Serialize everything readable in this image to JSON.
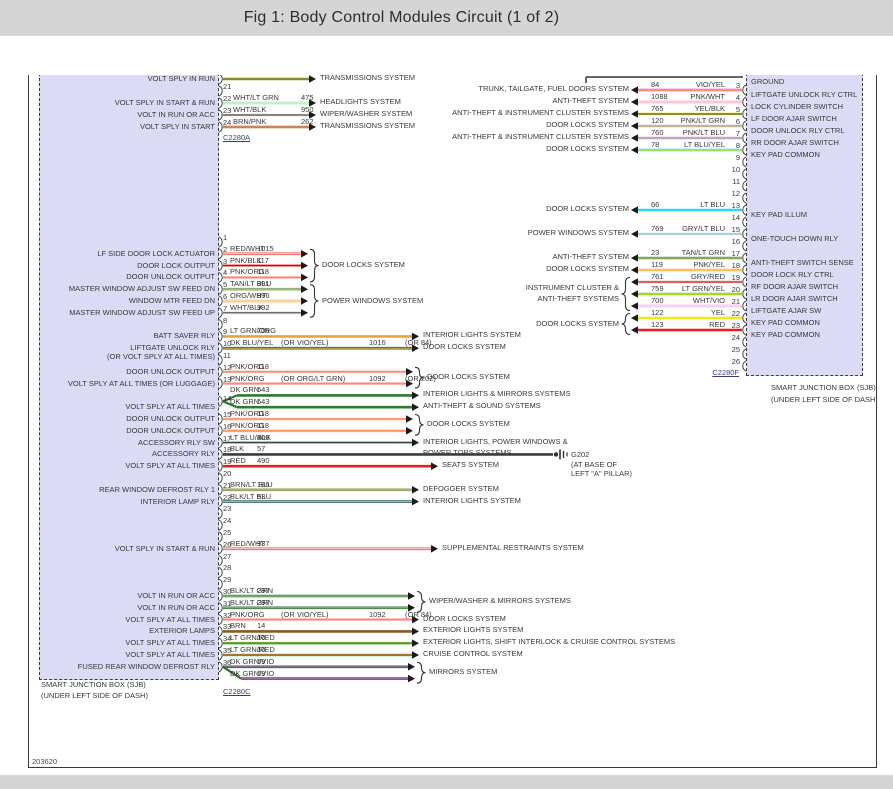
{
  "title": "Fig 1: Body Control Modules Circuit (1 of 2)",
  "sheet_number": "203620",
  "left_box": {
    "caption_line1": "SMART JUNCTION BOX (SJB)",
    "caption_line2": "(UNDER LEFT SIDE OF DASH)"
  },
  "right_box": {
    "caption_line1": "SMART JUNCTION BOX (SJB)",
    "caption_line2": "(UNDER LEFT SIDE OF DASH)"
  },
  "ground_g202": {
    "name": "G202",
    "lines": [
      "(AT BASE OF",
      "LEFT \"A\" PILLAR)"
    ]
  },
  "left_groups": {
    "dl1": "DOOR LOCKS SYSTEM",
    "pw": "POWER WINDOWS SYSTEM",
    "dl2": "DOOR LOCKS SYSTEM",
    "dl3": "DOOR LOCKS SYSTEM",
    "ww": "WIPER/WASHER & MIRRORS SYSTEMS",
    "mir": "MIRRORS SYSTEM"
  },
  "left_sections": [
    {
      "connector": "C2280A",
      "rows": [
        {
          "pin": "",
          "wire_key": "OLIVE",
          "label": "VOLT SPLY IN RUN",
          "system": "TRANSMISSIONS SYSTEM"
        },
        {
          "pin": "21"
        },
        {
          "pin": "22",
          "color": "WHT/LT GRN",
          "circuit": "475",
          "label": "VOLT SPLY IN START & RUN",
          "system": "HEADLIGHTS SYSTEM"
        },
        {
          "pin": "23",
          "color": "WHT/BLK",
          "circuit": "950",
          "label": "VOLT IN RUN OR ACC",
          "system": "WIPER/WASHER SYSTEM"
        },
        {
          "pin": "24",
          "color": "BRN/PNK",
          "circuit": "262",
          "label": "VOLT SPLY IN START",
          "system": "TRANSMISSIONS SYSTEM"
        }
      ]
    },
    {
      "connector": "C2280C",
      "rows": [
        {
          "pin": "1"
        },
        {
          "pin": "2",
          "color": "RED/WHT",
          "circuit": "1015",
          "label": "LF SIDE DOOR LOCK ACTUATOR",
          "group": "dl1"
        },
        {
          "pin": "3",
          "color": "PNK/BLK",
          "circuit": "117",
          "label": "DOOR LOCK OUTPUT",
          "group": "dl1"
        },
        {
          "pin": "4",
          "color": "PNK/ORG",
          "circuit": "118",
          "label": "DOOR UNLOCK OUTPUT",
          "group": "dl1"
        },
        {
          "pin": "5",
          "color": "TAN/LT BLU",
          "circuit": "991",
          "label": "MASTER WINDOW ADJUST SW FEED DN",
          "group": "pw"
        },
        {
          "pin": "6",
          "color": "ORG/WHT",
          "circuit": "996",
          "label": "WINDOW MTR FEED DN",
          "group": "pw"
        },
        {
          "pin": "7",
          "color": "WHT/BLK",
          "circuit": "992",
          "label": "MASTER WINDOW ADJUST SW FEED UP",
          "group": "pw"
        },
        {
          "pin": "8"
        },
        {
          "pin": "9",
          "color": "LT GRN/ORG",
          "circuit": "705",
          "label": "BATT SAVER RLY",
          "system": "INTERIOR LIGHTS SYSTEM",
          "reach": "far"
        },
        {
          "pin": "10",
          "color": "DK BLU/YEL",
          "alt_color": "(OR VIO/YEL)",
          "circuit": "1016",
          "alt_circuit": "(OR 84)",
          "label": "LIFTGATE UNLOCK RLY",
          "label2": "(OR VOLT SPLY AT ALL TIMES)",
          "system": "DOOR LOCKS SYSTEM",
          "reach": "far"
        },
        {
          "pin": "11"
        },
        {
          "pin": "12",
          "color": "PNK/ORG",
          "circuit": "118",
          "label": "DOOR UNLOCK OUTPUT",
          "group": "dl2"
        },
        {
          "pin": "13",
          "color": "PNK/ORG",
          "alt_color": "(OR ORG/LT GRN)",
          "circuit": "1092",
          "alt_circuit": "(OR 202)",
          "label": "VOLT SPLY AT ALL TIMES (OR LUGGAGE)",
          "group": "dl2"
        },
        {
          "pin": "14",
          "color": "DK GRN",
          "circuit": "543",
          "system": "INTERIOR LIGHTS & MIRRORS SYSTEMS",
          "fork": "mid-a",
          "reach": "far"
        },
        {
          "color": "DK GRN",
          "circuit": "543",
          "system": "ANTI-THEFT & SOUND SYSTEMS",
          "label": "VOLT SPLY AT ALL TIMES",
          "fork": "mid-b",
          "reach": "far"
        },
        {
          "pin": "15",
          "color": "PNK/ORG",
          "circuit": "118",
          "label": "DOOR UNLOCK OUTPUT",
          "group": "dl3"
        },
        {
          "pin": "16",
          "color": "PNK/ORG",
          "circuit": "118",
          "label": "DOOR UNLOCK OUTPUT",
          "group": "dl3"
        },
        {
          "pin": "17",
          "color": "LT BLU/BLK",
          "circuit": "400",
          "label": "ACCESSORY RLY SW",
          "system": [
            "INTERIOR LIGHTS, POWER WINDOWS &",
            "POWER TOPS SYSTEMS"
          ],
          "reach": "far"
        },
        {
          "pin": "18",
          "color": "BLK",
          "circuit": "57",
          "label": "ACCESSORY RLY",
          "ground": true,
          "reach": "gnd"
        },
        {
          "pin": "19",
          "color": "RED",
          "circuit": "490",
          "label": "VOLT SPLY AT ALL TIMES",
          "system": "SEATS SYSTEM",
          "reach": "farp"
        },
        {
          "pin": "20"
        },
        {
          "pin": "21",
          "color": "BRN/LT BLU",
          "circuit": "186",
          "label": "REAR WINDOW DEFROST RLY 1",
          "system": "DEFOGGER SYSTEM",
          "reach": "far"
        },
        {
          "pin": "22",
          "color": "BLK/LT BLU",
          "circuit": "53",
          "label": "INTERIOR LAMP RLY",
          "system": "INTERIOR LIGHTS SYSTEM",
          "reach": "far"
        },
        {
          "pin": "23"
        },
        {
          "pin": "24"
        },
        {
          "pin": "25"
        },
        {
          "pin": "26",
          "color": "RED/WHT",
          "circuit": "937",
          "label": "VOLT SPLY IN START & RUN",
          "system": "SUPPLEMENTAL RESTRAINTS SYSTEM",
          "reach": "farp"
        },
        {
          "pin": "27"
        },
        {
          "pin": "28"
        },
        {
          "pin": "29"
        },
        {
          "pin": "30",
          "color": "BLK/LT GRN",
          "circuit": "297",
          "label": "VOLT IN RUN OR ACC",
          "group": "ww"
        },
        {
          "pin": "31",
          "color": "BLK/LT GRN",
          "circuit": "297",
          "label": "VOLT IN RUN OR ACC",
          "group": "ww"
        },
        {
          "pin": "32",
          "color": "PNK/ORG",
          "alt_color": "(OR VIO/YEL)",
          "circuit": "1092",
          "alt_circuit": "(OR 84)",
          "label": "VOLT SPLY AT ALL TIMES",
          "system": "DOOR LOCKS SYSTEM",
          "reach": "far"
        },
        {
          "pin": "33",
          "color": "BRN",
          "circuit": "14",
          "label": "EXTERIOR LAMPS",
          "system": "EXTERIOR LIGHTS SYSTEM",
          "reach": "far"
        },
        {
          "pin": "34",
          "color": "LT GRN/RED",
          "circuit": "10",
          "label": "VOLT SPLY AT ALL TIMES",
          "system": "EXTERIOR LIGHTS, SHIFT INTERLOCK & CRUISE CONTROL SYSTEMS",
          "reach": "far"
        },
        {
          "pin": "35",
          "color": "LT GRN/RED",
          "circuit": "10",
          "label": "VOLT SPLY AT ALL TIMES",
          "system": "CRUISE CONTROL SYSTEM",
          "reach": "far"
        },
        {
          "pin": "36",
          "color": "DK GRN/VIO",
          "circuit": "59",
          "label": "FUSED REAR WINDOW DEFROST RLY",
          "group": "mir",
          "fork": "down-a"
        },
        {
          "color": "DK GRN/VIO",
          "circuit": "59",
          "group": "mir",
          "fork": "down-b"
        }
      ]
    }
  ],
  "right_section": {
    "connector": "C2280F",
    "ground_label": "GROUND",
    "groups": {
      "icat": {
        "lines": [
          "INSTRUMENT CLUSTER &",
          "ANTI-THEFT SYSTEMS"
        ]
      },
      "dlk": {
        "lines": [
          "DOOR LOCKS SYSTEM"
        ]
      }
    },
    "rows": [
      {
        "pin": "3",
        "circuit": "84",
        "color": "VIO/YEL",
        "system": "TRUNK, TAILGATE, FUEL DOORS SYSTEM",
        "box_label": "LIFTGATE UNLOCK RLY CTRL"
      },
      {
        "pin": "4",
        "circuit": "1088",
        "color": "PNK/WHT",
        "system": "ANTI-THEFT SYSTEM",
        "box_label": "LOCK CYLINDER SWITCH"
      },
      {
        "pin": "5",
        "circuit": "765",
        "color": "YEL/BLK",
        "system": "ANTI-THEFT & INSTRUMENT CLUSTER SYSTEMS",
        "box_label": "LF DOOR AJAR SWITCH"
      },
      {
        "pin": "6",
        "circuit": "120",
        "color": "PNK/LT GRN",
        "system": "DOOR LOCKS SYSTEM",
        "box_label": "DOOR UNLOCK RLY CTRL"
      },
      {
        "pin": "7",
        "circuit": "760",
        "color": "PNK/LT BLU",
        "system": "ANTI-THEFT & INSTRUMENT CLUSTER SYSTEMS",
        "box_label": "RR DOOR AJAR SWITCH"
      },
      {
        "pin": "8",
        "circuit": "78",
        "color": "LT BLU/YEL",
        "system": "DOOR LOCKS SYSTEM",
        "box_label": "KEY PAD COMMON"
      },
      {
        "pin": "9"
      },
      {
        "pin": "10"
      },
      {
        "pin": "11"
      },
      {
        "pin": "12"
      },
      {
        "pin": "13",
        "circuit": "66",
        "color": "LT BLU",
        "system": "DOOR LOCKS SYSTEM",
        "box_label": "KEY PAD ILLUM"
      },
      {
        "pin": "14"
      },
      {
        "pin": "15",
        "circuit": "769",
        "color": "GRY/LT BLU",
        "system": "POWER WINDOWS SYSTEM",
        "box_label": "ONE-TOUCH DOWN RLY"
      },
      {
        "pin": "16"
      },
      {
        "pin": "17",
        "circuit": "23",
        "color": "TAN/LT GRN",
        "system": "ANTI-THEFT SYSTEM",
        "box_label": "ANTI-THEFT SWITCH SENSE"
      },
      {
        "pin": "18",
        "circuit": "119",
        "color": "PNK/YEL",
        "system": "DOOR LOCKS SYSTEM",
        "box_label": "DOOR LOCK RLY CTRL"
      },
      {
        "pin": "19",
        "circuit": "761",
        "color": "GRY/RED",
        "group": "icat",
        "box_label": "RF DOOR AJAR SWITCH"
      },
      {
        "pin": "20",
        "circuit": "759",
        "color": "LT GRN/YEL",
        "group": "icat",
        "box_label": "LR DOOR AJAR SWITCH"
      },
      {
        "pin": "21",
        "circuit": "700",
        "color": "WHT/VIO",
        "group": "icat",
        "box_label": "LIFTGATE AJAR SW"
      },
      {
        "pin": "22",
        "circuit": "122",
        "color": "YEL",
        "group": "dlk",
        "box_label": "KEY PAD COMMON"
      },
      {
        "pin": "23",
        "circuit": "123",
        "color": "RED",
        "group": "dlk",
        "box_label": "KEY PAD COMMON"
      },
      {
        "pin": "24"
      },
      {
        "pin": "25"
      },
      {
        "pin": "26"
      }
    ]
  },
  "wire_colors": {
    "OLIVE": [
      "#8a8a2e"
    ],
    "WHT/LT GRN": [
      "#8ce88c",
      "#f8f8f8"
    ],
    "WHT/BLK": [
      "#d8d8d8",
      "#303030"
    ],
    "BRN/PNK": [
      "#9a6a2e",
      "#ff9898"
    ],
    "RED/WHT": [
      "#ee4848",
      "#ffffff"
    ],
    "PNK/BLK": [
      "#f08080",
      "#303030"
    ],
    "PNK/ORG": [
      "#ffaaaa",
      "#ff8c30"
    ],
    "TAN/LT BLU": [
      "#98a860",
      "#78c8e0"
    ],
    "ORG/WHT": [
      "#ffa030",
      "#ffffff"
    ],
    "LT GRN/ORG": [
      "#6ee046",
      "#ff9830"
    ],
    "DK BLU/YEL": [
      "#38496e",
      "#e8d830"
    ],
    "DK GRN": [
      "#2c7c2c"
    ],
    "LT BLU/BLK": [
      "#3cdce8",
      "#303030"
    ],
    "BLK": [
      "#3c3c3c"
    ],
    "RED": [
      "#e81e1e"
    ],
    "BRN/LT BLU": [
      "#9a9a46",
      "#80c8e8"
    ],
    "BLK/LT BLU": [
      "#3c6a6a",
      "#88c8d8"
    ],
    "BLK/LT GRN": [
      "#3a703a",
      "#88e088"
    ],
    "BRN": [
      "#8a5a22"
    ],
    "LT GRN/RED": [
      "#58cc48",
      "#e82020"
    ],
    "DK GRN/VIO": [
      "#2e6e2e",
      "#b070c8"
    ],
    "VIO/YEL": [
      "#f03ac8",
      "#ffe81e"
    ],
    "PNK/WHT": [
      "#fa8cba",
      "#ffffff"
    ],
    "YEL/BLK": [
      "#f0e618",
      "#303030"
    ],
    "PNK/LT GRN": [
      "#fa9cc2",
      "#70d870"
    ],
    "PNK/LT BLU": [
      "#fa8ca2",
      "#70c8e8"
    ],
    "LT BLU/YEL": [
      "#38e0d0",
      "#f0e618"
    ],
    "LT BLU": [
      "#28d8ec"
    ],
    "GRY/LT BLU": [
      "#c2dce8",
      "#98bccc"
    ],
    "TAN/LT GRN": [
      "#52a852",
      "#c8a060"
    ],
    "PNK/YEL": [
      "#faa888",
      "#f0e618"
    ],
    "GRY/RED": [
      "#d29a9a",
      "#c83030"
    ],
    "LT GRN/YEL": [
      "#5ec832",
      "#f0e618"
    ],
    "WHT/VIO": [
      "#eea0ee",
      "#ffffff"
    ],
    "YEL": [
      "#f0e618"
    ]
  }
}
